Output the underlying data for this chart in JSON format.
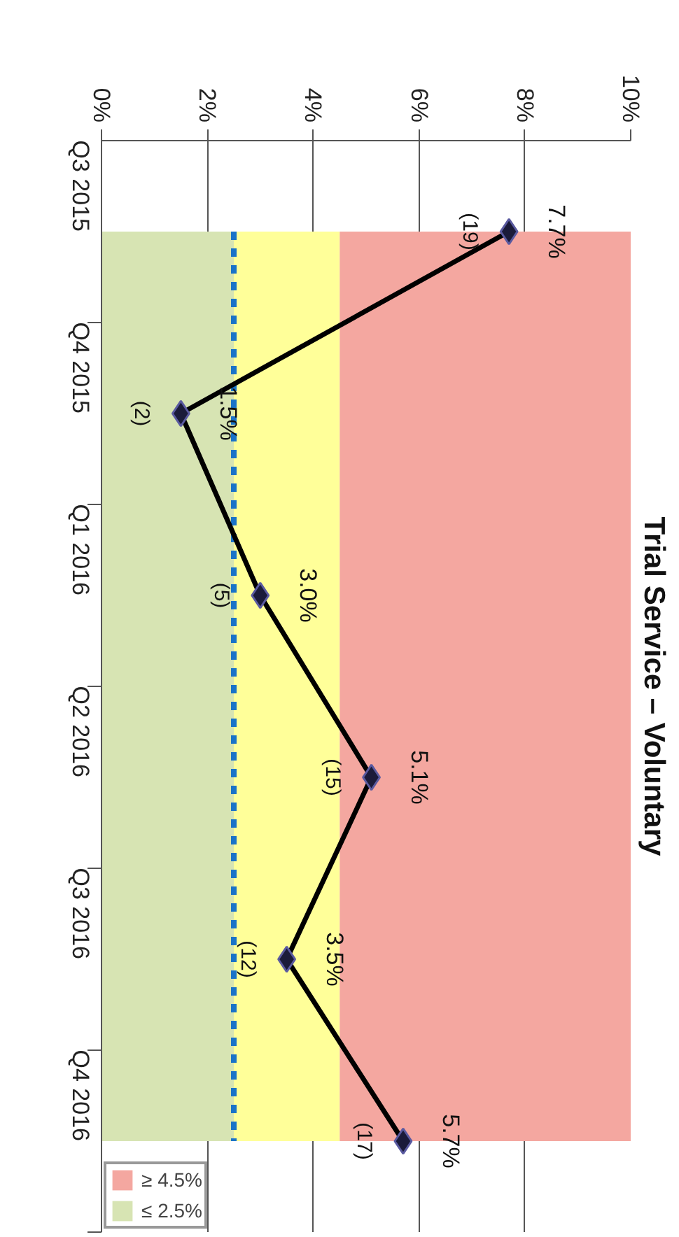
{
  "chart_data": {
    "type": "line",
    "title": "Trial Service – Voluntary",
    "categories": [
      "Q3 2015",
      "Q4 2015",
      "Q1 2016",
      "Q2 2016",
      "Q3 2016",
      "Q4 2016"
    ],
    "series": [
      {
        "color": "#000000",
        "values": [
          7.7,
          1.5,
          3.0,
          5.1,
          3.5,
          5.7
        ],
        "value_labels": [
          "7.7%",
          "1.5%",
          "3.0%",
          "5.1%",
          "3.5%",
          "5.7%"
        ]
      }
    ],
    "orientation": "horizontal",
    "marker": "diamond",
    "line_style": "solid",
    "xlim": [
      0,
      10
    ],
    "xticks": [
      {
        "value": 0,
        "label": "0%"
      },
      {
        "value": 2,
        "label": "2%"
      },
      {
        "value": 4,
        "label": "4%"
      },
      {
        "value": 6,
        "label": "6%"
      },
      {
        "value": 8,
        "label": "8%"
      },
      {
        "value": 10,
        "label": "10%"
      }
    ],
    "grid": "x",
    "ref_lines": [
      {
        "axis": "x",
        "value": 2.5,
        "color": "#1a73c8",
        "line_style": "dashed"
      }
    ],
    "bands": [
      {
        "axis": "x",
        "from": 4.5,
        "to": 10,
        "label": "≥ 4.5%",
        "color": "#f4a7a0"
      },
      {
        "axis": "x",
        "from": 0,
        "to": 2.5,
        "label": "≤ 2.5%",
        "color": "#d7e4b3"
      },
      {
        "axis": "x",
        "from": 2.5,
        "to": 4.5,
        "color": "#ffff99"
      }
    ],
    "annotations": [
      "(19)",
      "(2)",
      "(5)",
      "(15)",
      "(12)",
      "(17)"
    ],
    "legend": "bottom left"
  }
}
